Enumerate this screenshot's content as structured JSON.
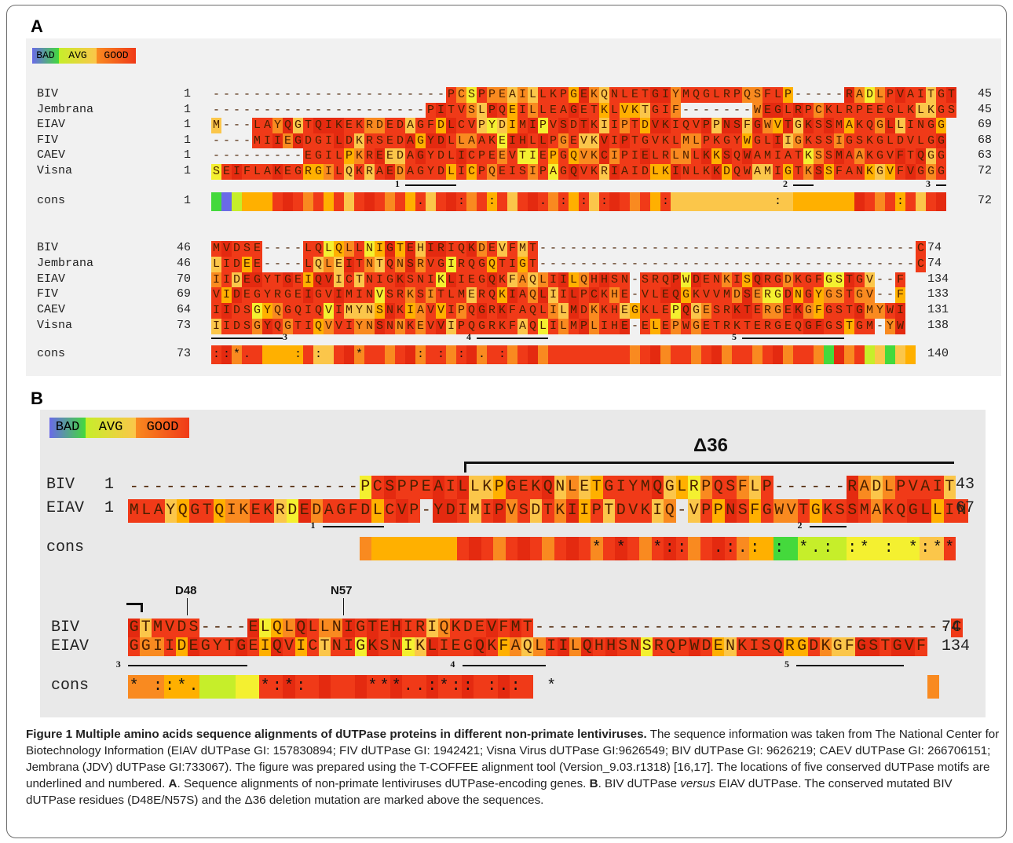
{
  "panel_labels": {
    "a": "A",
    "b": "B"
  },
  "legend": {
    "bad": "BAD",
    "avg": "AVG",
    "good": "GOOD"
  },
  "colors": {
    "bad": "#6a6ae8",
    "green": "#44d93c",
    "ygreen": "#c6ee2a",
    "yellow": "#f4f030",
    "orange": "#fbc64a",
    "lorange": "#ffb000",
    "dorange": "#f98a20",
    "red": "#f03a18",
    "dred": "#e42a10"
  },
  "panel_a": {
    "block1": {
      "rows": [
        {
          "name": "BIV",
          "start": "1",
          "seq": "-----------------------PCSPPEAILLKPGEKQNLETGIYMQGLRPQSFLP-----RADLPVAITGT",
          "end": "45"
        },
        {
          "name": "Jembrana",
          "start": "1",
          "seq": "---------------------PITVSLPQEILLEAGETKLVKTGIF-------WEGLRPCKLRPEEGLKLKGS",
          "end": "45"
        },
        {
          "name": "EIAV",
          "start": "1",
          "seq": "M---LAYQGTQIKEKRDEDAGFDLCVPYDIMIPVSDTKIIPTDVKIQVPPNSFGWVTGKSSMAKQGLLINGG",
          "end": "69"
        },
        {
          "name": "FIV",
          "start": "1",
          "seq": "----MIIEGDGILDKRSEDAGYDLLAAKEIHLLPGEVKVIPTGVKLMLPKGYWGLIIGKSSIGSKGLDVLGG",
          "end": "68"
        },
        {
          "name": "CAEV",
          "start": "1",
          "seq": "---------EGILPKREEDAGYDLICPEEVTIEPGQVKCIPIELRLNLKKSQWAMIATKSSMAAKGVFTQGG",
          "end": "63"
        },
        {
          "name": "Visna",
          "start": "1",
          "seq": "SEIFLAKEGRGILQKRAEDAGYDLICPQEISIPAGQVKRIAIDLKINLKKDQWAMIGTKSSFANKGVFVGGG",
          "end": "72"
        }
      ],
      "cons": {
        "name": "cons",
        "start": "1",
        "marks": "                    .   :  :    . : : :     :          :           :     *",
        "end": "72"
      },
      "motifs": [
        "1",
        "2",
        "3"
      ]
    },
    "block2": {
      "rows": [
        {
          "name": "BIV",
          "start": "46",
          "seq": "MVDSE----LQLQLLNIGTEHIRIQKDEVFMT-------------------------------------C",
          "end": "74"
        },
        {
          "name": "Jembrana",
          "start": "46",
          "seq": "LIDEE----LQLEITNTQNSRVGIRQGQTIGT-------------------------------------C",
          "end": "74"
        },
        {
          "name": "EIAV",
          "start": "70",
          "seq": "IIDEGYTGEIQVICTNIGKSNIKLIEGQKFAQLIILQHHSN-SRQPWDENKISQRGDKGFGSTGV--F",
          "end": "134"
        },
        {
          "name": "FIV",
          "start": "69",
          "seq": "VIDEGYRGEIGVIMINVSRKSITLMERQKIAQLIILPCKHE-VLEQGKVVMDSERGDNGYGSTGV--F",
          "end": "133"
        },
        {
          "name": "CAEV",
          "start": "64",
          "seq": "IIDSGYQGQIQVIMYNSNKIAVVIPQGRKFAQLILMDKKHEGKLEPQGESRKTERGEKGFGSTGMYWI",
          "end": "131"
        },
        {
          "name": "Visna",
          "start": "73",
          "seq": "IIDSGYQGTIQVVIYNSNNKEVVIPQGRKFAQLILMPLIHE-ELEPWGETRKTERGEQGFGSTGM-YW",
          "end": "138"
        }
      ],
      "cons": {
        "name": "cons",
        "start": "73",
        "marks": "::*.    : :   *     : : : . :",
        "end": "140"
      },
      "motifs": [
        "3",
        "4",
        "5"
      ]
    }
  },
  "panel_b": {
    "delta": "Δ36",
    "mutations": {
      "d48": "D48",
      "n57": "N57"
    },
    "block1": {
      "rows": [
        {
          "name": "BIV",
          "start": "1",
          "seq": "-------------------PCSPPEAILLKPGEKQNLETGIYMQGLRPQSFLP------RADLPVAIT",
          "end": "43"
        },
        {
          "name": "EIAV",
          "start": "1",
          "seq": "MLAYQGTQIKEKRDEDAGFDLCVP-YDIMIPVSDTKIIPTDVKIQ-VPPNSFGWVTGKSSMAKQGLLIN",
          "end": "67"
        }
      ],
      "cons": {
        "name": "cons",
        "marks": "                   * *  *::  .:.: : *.: :* : *:**      *.  : *."
      },
      "motifs": [
        "1",
        "2"
      ]
    },
    "block2": {
      "rows": [
        {
          "name": "BIV",
          "seq": "GTMVDS----ELQLQLLNIGTEHIRIQKDEVFMT-----------------------------------C",
          "end": "74"
        },
        {
          "name": "EIAV",
          "seq": "GGIIDEGYTGEIQVICTNIGKSNIKLIEGQKFAQLIILQHHSNSRQPWDENKISQRGDKGFGSTGVF",
          "end": "134"
        }
      ],
      "cons": {
        "name": "cons",
        "marks": "* ::*.     *:*:     ***..:*:: :.:  *"
      },
      "motifs": [
        "3",
        "4",
        "5"
      ]
    }
  },
  "caption": {
    "title": "Figure 1 Multiple amino acids sequence alignments of dUTPase proteins in different non-primate lentiviruses.",
    "text1": " The sequence information was taken from The National Center for Biotechnology Information (EIAV dUTPase GI: 157830894; FIV dUTPase GI: 1942421; Visna Virus dUTPase GI:9626549; BIV dUTPase GI: 9626219; CAEV dUTPase GI: 266706151; Jembrana (JDV) dUTPase GI:733067). The figure was prepared using the T-COFFEE alignment tool (Version_9.03.r1318) [16,17]. The locations of five conserved dUTPase motifs are underlined and numbered. ",
    "a_bold": "A",
    "text2": ". Sequence alignments of non-primate lentiviruses dUTPase-encoding genes. ",
    "b_bold": "B",
    "text3": ". BIV dUTPase ",
    "versus": "versus",
    "text4": " EIAV dUTPase. The conserved mutated BIV dUTPase residues (D48E/N57S) and the ",
    "delta": "Δ36",
    "text5": " deletion mutation are marked above the sequences."
  }
}
